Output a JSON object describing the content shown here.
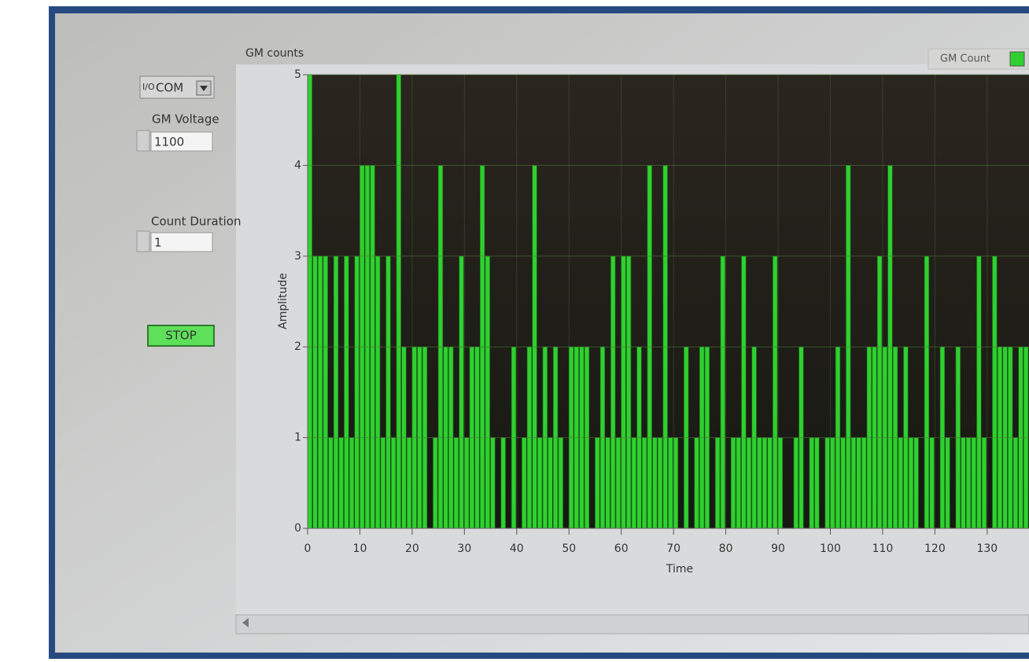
{
  "controls": {
    "port": "COM",
    "voltage_label": "GM Voltage",
    "voltage": "1100",
    "duration_label": "Count Duration",
    "duration": "1",
    "stop": "STOP"
  },
  "chart_data": {
    "type": "bar",
    "title": "GM counts",
    "x_label": "Time",
    "y_label": "Amplitude",
    "x": [
      0,
      1,
      2,
      3,
      4,
      5,
      6,
      7,
      8,
      9,
      10,
      11,
      12,
      13,
      14,
      15,
      16,
      17,
      18,
      19,
      20,
      21,
      22,
      23,
      24,
      25,
      26,
      27,
      28,
      29,
      30,
      31,
      32,
      33,
      34,
      35,
      36,
      37,
      38,
      39,
      40,
      41,
      42,
      43,
      44,
      45,
      46,
      47,
      48,
      49,
      50,
      51,
      52,
      53,
      54,
      55,
      56,
      57,
      58,
      59,
      60,
      61,
      62,
      63,
      64,
      65,
      66,
      67,
      68,
      69,
      70,
      71,
      72,
      73,
      74,
      75,
      76,
      77,
      78,
      79,
      80,
      81,
      82,
      83,
      84,
      85,
      86,
      87,
      88,
      89,
      90,
      91,
      92,
      93,
      94,
      95,
      96,
      97,
      98,
      99,
      100,
      101,
      102,
      103,
      104,
      105,
      106,
      107,
      108,
      109,
      110,
      111,
      112,
      113,
      114,
      115,
      116,
      117,
      118,
      119,
      120,
      121,
      122,
      123,
      124,
      125,
      126,
      127,
      128,
      129,
      130,
      131,
      132,
      133,
      134,
      135,
      136,
      137
    ],
    "series": [
      {
        "name": "GM Count",
        "color": "#2fd02f",
        "values": [
          5,
          3,
          3,
          3,
          1,
          3,
          1,
          3,
          1,
          3,
          4,
          4,
          4,
          3,
          1,
          3,
          1,
          5,
          2,
          1,
          2,
          2,
          2,
          0,
          1,
          4,
          2,
          2,
          1,
          3,
          1,
          2,
          2,
          4,
          3,
          1,
          0,
          1,
          0,
          2,
          0,
          1,
          2,
          4,
          1,
          2,
          1,
          2,
          1,
          0,
          2,
          2,
          2,
          2,
          0,
          1,
          2,
          1,
          3,
          1,
          3,
          3,
          1,
          2,
          1,
          4,
          1,
          1,
          4,
          1,
          1,
          0,
          2,
          0,
          1,
          2,
          2,
          0,
          1,
          3,
          0,
          1,
          1,
          3,
          1,
          2,
          1,
          1,
          1,
          3,
          1,
          0,
          0,
          1,
          2,
          0,
          1,
          1,
          0,
          1,
          1,
          2,
          1,
          4,
          1,
          1,
          1,
          2,
          2,
          3,
          2,
          4,
          2,
          1,
          2,
          1,
          1,
          0,
          3,
          1,
          0,
          2,
          1,
          0,
          2,
          1,
          1,
          1,
          3,
          1,
          0,
          3,
          2,
          2,
          2,
          1,
          2,
          2
        ]
      }
    ],
    "xlim": [
      0,
      138
    ],
    "ylim": [
      0,
      5
    ],
    "xticks": [
      0,
      10,
      20,
      30,
      40,
      50,
      60,
      70,
      80,
      90,
      100,
      110,
      120,
      130
    ],
    "yticks": [
      0,
      1,
      2,
      3,
      4,
      5
    ],
    "grid": true
  }
}
